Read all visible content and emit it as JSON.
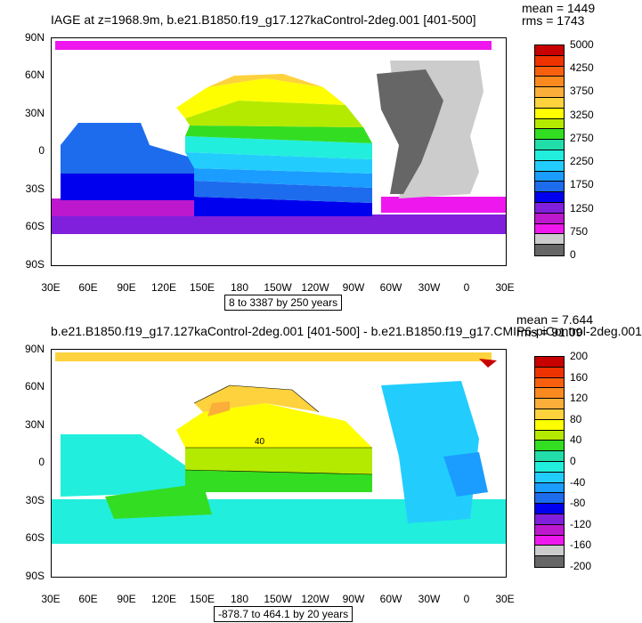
{
  "panel1": {
    "title": "IAGE at z=1968.9m, b.e21.B1850.f19_g17.127kaControl-2deg.001 [401-500]",
    "stats": {
      "mean": "mean = 1449",
      "rms": "rms = 1743"
    },
    "range": "8 to 3387 by 250 years",
    "lat_labels": [
      "90N",
      "60N",
      "30N",
      "0",
      "30S",
      "60S",
      "90S"
    ],
    "lon_labels": [
      "30E",
      "60E",
      "90E",
      "120E",
      "150E",
      "180",
      "150W",
      "120W",
      "90W",
      "60W",
      "30W",
      "0",
      "30E"
    ],
    "legend_colors": [
      "#c80000",
      "#ee3300",
      "#f86010",
      "#fa8a20",
      "#fbae3a",
      "#fdd23c",
      "#fefe00",
      "#b4ea00",
      "#33dd22",
      "#22ddaa",
      "#22eedd",
      "#22cdfe",
      "#1a9dfe",
      "#1d6cee",
      "#0000ee",
      "#8020dd",
      "#be18ce",
      "#ee18ee",
      "#cccccc",
      "#666666"
    ],
    "legend_labels": [
      "5000",
      "4250",
      "3750",
      "3250",
      "2750",
      "2250",
      "1750",
      "1250",
      "750",
      "0"
    ]
  },
  "panel2": {
    "title": "b.e21.B1850.f19_g17.127kaControl-2deg.001 [401-500] - b.e21.B1850.f19_g17.CMIP6-piControl-2deg.001",
    "stats": {
      "mean": "mean = 7.644",
      "rms": "rms = 91.09"
    },
    "range": "-878.7 to 464.1 by 20 years",
    "contour_label": "40",
    "lat_labels": [
      "90N",
      "60N",
      "30N",
      "0",
      "30S",
      "60S",
      "90S"
    ],
    "lon_labels": [
      "30E",
      "60E",
      "90E",
      "120E",
      "150E",
      "180",
      "150W",
      "120W",
      "90W",
      "60W",
      "30W",
      "0",
      "30E"
    ],
    "legend_colors": [
      "#c80000",
      "#ee3300",
      "#f86010",
      "#fa8a20",
      "#fbae3a",
      "#fdd23c",
      "#fefe00",
      "#b4ea00",
      "#33dd22",
      "#22ddaa",
      "#22eedd",
      "#22cdfe",
      "#1a9dfe",
      "#1d6cee",
      "#0000ee",
      "#8020dd",
      "#be18ce",
      "#ee18ee",
      "#cccccc",
      "#666666"
    ],
    "legend_labels": [
      "200",
      "160",
      "120",
      "80",
      "40",
      "0",
      "-40",
      "-80",
      "-120",
      "-160",
      "-200"
    ]
  }
}
